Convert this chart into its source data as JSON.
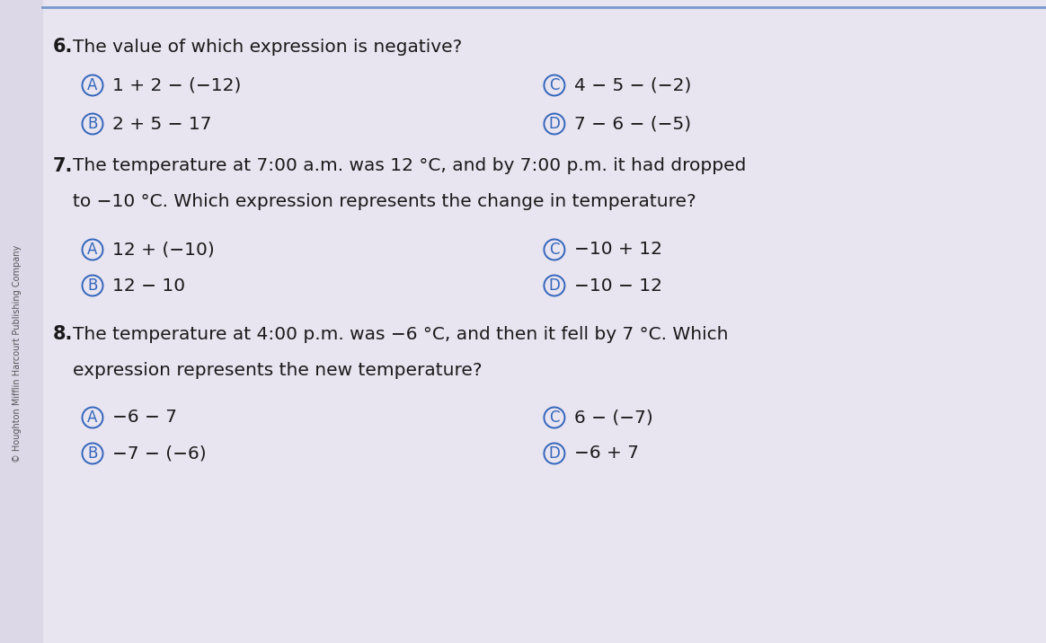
{
  "bg_color": "#ddd8e8",
  "bg_main_color": "#e8e4f0",
  "text_color": "#1a1a1a",
  "circle_edge_color": "#3366bb",
  "sidebar_text": "© Houghton Mifflin Harcourt Publishing Company",
  "q6_number": "6.",
  "q6_question": "The value of which expression is negative?",
  "q6_A_text": "1 + 2 − (−12)",
  "q6_B_text": "2 + 5 − 17",
  "q6_C_text": "4 − 5 − (−2)",
  "q6_D_text": "7 − 6 − (−5)",
  "q7_number": "7.",
  "q7_question_line1": "The temperature at 7:00 a.m. was 12 °C, and by 7:00 p.m. it had dropped",
  "q7_question_line2": "to −10 °C. Which expression represents the change in temperature?",
  "q7_A_text": "12 + (−10)",
  "q7_B_text": "12 − 10",
  "q7_C_text": "−10 + 12",
  "q7_D_text": "−10 − 12",
  "q8_number": "8.",
  "q8_question_line1": "The temperature at 4:00 p.m. was −6 °C, and then it fell by 7 °C. Which",
  "q8_question_line2": "expression represents the new temperature?",
  "q8_A_text": "−6 − 7",
  "q8_B_text": "−7 − (−6)",
  "q8_C_text": "6 − (−7)",
  "q8_D_text": "−6 + 7",
  "top_line_color": "#7799cc",
  "font_size_question": 14.5,
  "font_size_number": 15,
  "font_size_answer": 14.5,
  "font_size_sidebar": 7.0,
  "fig_width": 11.64,
  "fig_height": 7.16,
  "dpi": 100
}
